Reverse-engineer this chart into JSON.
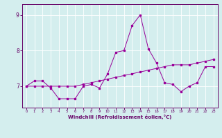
{
  "x": [
    0,
    1,
    2,
    3,
    4,
    5,
    6,
    7,
    8,
    9,
    10,
    11,
    12,
    13,
    14,
    15,
    16,
    17,
    18,
    19,
    20,
    21,
    22,
    23
  ],
  "line1": [
    7.0,
    7.15,
    7.15,
    6.95,
    6.65,
    6.65,
    6.65,
    7.0,
    7.05,
    6.95,
    7.35,
    7.95,
    8.0,
    8.7,
    9.0,
    8.05,
    7.65,
    7.1,
    7.05,
    6.85,
    7.0,
    7.1,
    7.55,
    7.55
  ],
  "line2": [
    7.0,
    7.0,
    7.0,
    7.0,
    7.0,
    7.0,
    7.0,
    7.05,
    7.1,
    7.15,
    7.2,
    7.25,
    7.3,
    7.35,
    7.4,
    7.45,
    7.5,
    7.55,
    7.6,
    7.6,
    7.6,
    7.65,
    7.7,
    7.75
  ],
  "line_color": "#990099",
  "bg_color": "#d4eeee",
  "grid_color": "#ffffff",
  "xlabel": "Windchill (Refroidissement éolien,°C)",
  "yticks": [
    7,
    8,
    9
  ],
  "xticks": [
    0,
    1,
    2,
    3,
    4,
    5,
    6,
    7,
    8,
    9,
    10,
    11,
    12,
    13,
    14,
    15,
    16,
    17,
    18,
    19,
    20,
    21,
    22,
    23
  ],
  "ylim": [
    6.4,
    9.3
  ],
  "xlim": [
    -0.5,
    23.5
  ],
  "line_color2": "#990099",
  "axis_color": "#660066",
  "tick_color": "#660066"
}
